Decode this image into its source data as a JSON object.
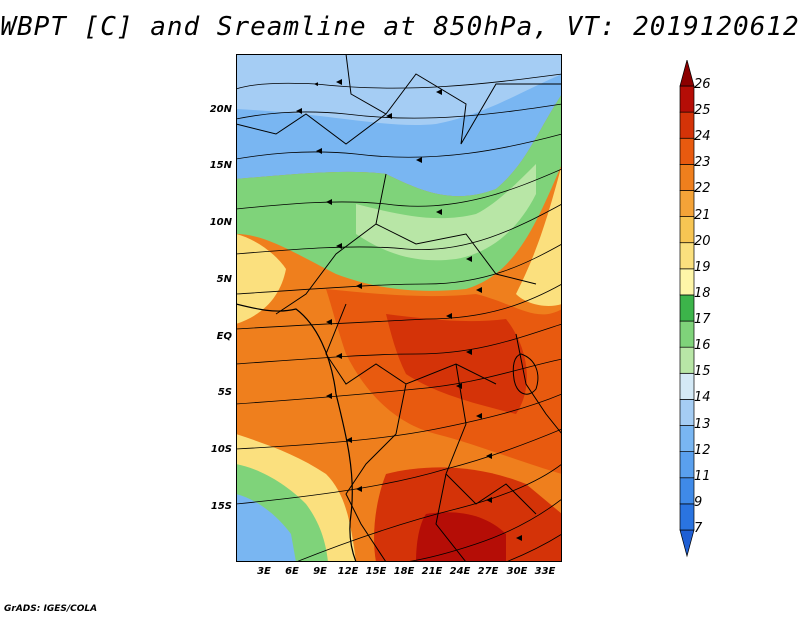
{
  "title": "WBPT [C] and Sreamline at 850hPa, VT: 2019120612",
  "credit": "GrADS: IGES/COLA",
  "map": {
    "lat_ticks": [
      "20N",
      "15N",
      "10N",
      "5N",
      "EQ",
      "5S",
      "10S",
      "15S"
    ],
    "lon_ticks": [
      "3E",
      "6E",
      "9E",
      "12E",
      "15E",
      "18E",
      "21E",
      "24E",
      "27E",
      "30E",
      "33E"
    ],
    "land_outline_color": "#000000"
  },
  "colorbar": {
    "levels": [
      "7",
      "9",
      "11",
      "12",
      "13",
      "14",
      "15",
      "16",
      "17",
      "18",
      "19",
      "20",
      "21",
      "22",
      "23",
      "24",
      "25",
      "26"
    ],
    "colors": [
      "#1f5fd4",
      "#2a74e0",
      "#3f8ae8",
      "#5aa0ee",
      "#79b6f2",
      "#a5cdf4",
      "#d4e9f6",
      "#b8e6a6",
      "#7fd37a",
      "#3cb44a",
      "#fef6a8",
      "#fbe07e",
      "#f7c553",
      "#f4a338",
      "#ef7f1d",
      "#e85a0f",
      "#d43308",
      "#b50d06",
      "#8c0000"
    ]
  }
}
